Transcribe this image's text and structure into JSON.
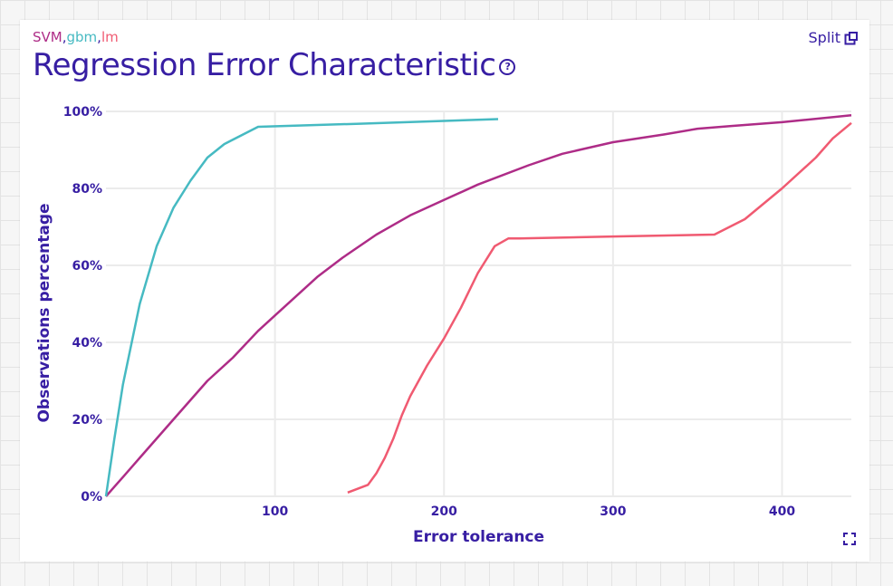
{
  "header": {
    "models": [
      {
        "label": "SVM",
        "color": "#ae2c87"
      },
      {
        "label": "gbm",
        "color": "#46bac2"
      },
      {
        "label": "lm",
        "color": "#f05a71"
      }
    ],
    "title": "Regression Error Characteristic",
    "help_icon": "?",
    "split_label": "Split"
  },
  "colors": {
    "text": "#371ea3",
    "grid": "#ebebeb",
    "background": "#ffffff"
  },
  "chart_data": {
    "type": "line",
    "title": "Regression Error Characteristic",
    "xlabel": "Error tolerance",
    "ylabel": "Observations percentage",
    "xlim": [
      0,
      441
    ],
    "ylim": [
      0,
      100
    ],
    "xticks": [
      100,
      200,
      300,
      400
    ],
    "yticks": [
      0,
      20,
      40,
      60,
      80,
      100
    ],
    "ytick_labels": [
      "0%",
      "20%",
      "40%",
      "60%",
      "80%",
      "100%"
    ],
    "grid": true,
    "series": [
      {
        "name": "SVM",
        "color": "#ae2c87",
        "x": [
          0,
          10,
          20,
          40,
          60,
          75,
          90,
          100,
          125,
          140,
          160,
          180,
          200,
          220,
          250,
          270,
          300,
          330,
          350,
          370,
          400,
          441
        ],
        "y": [
          0,
          5,
          10,
          20,
          30,
          36,
          43,
          47,
          57,
          62,
          68,
          73,
          77,
          81,
          86,
          89,
          92,
          94,
          95.5,
          96.2,
          97.2,
          99
        ]
      },
      {
        "name": "gbm",
        "color": "#46bac2",
        "x": [
          0,
          5,
          10,
          20,
          30,
          40,
          50,
          60,
          70,
          90,
          150,
          232
        ],
        "y": [
          0,
          15,
          29,
          50,
          65,
          75,
          82,
          88,
          91.5,
          96,
          96.8,
          98
        ]
      },
      {
        "name": "lm",
        "color": "#f05a71",
        "x": [
          143,
          155,
          160,
          165,
          170,
          175,
          180,
          190,
          200,
          210,
          220,
          230,
          238,
          245,
          300,
          360,
          378,
          400,
          420,
          430,
          441
        ],
        "y": [
          1,
          3,
          6,
          10,
          15,
          21,
          26,
          34,
          41,
          49,
          58,
          65,
          67,
          67,
          67.5,
          68,
          72,
          80,
          88,
          93,
          97
        ]
      }
    ]
  }
}
